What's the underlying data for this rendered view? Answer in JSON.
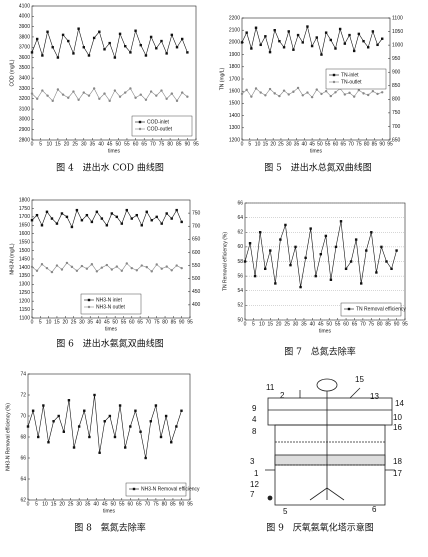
{
  "chart_data": [
    {
      "type": "line",
      "caption": "图 4　进出水 COD 曲线图",
      "xlabel": "times",
      "ylabel": "COD (mg/L)",
      "legend": "lower right",
      "grid": false,
      "x": [
        0,
        3,
        6,
        9,
        12,
        15,
        18,
        21,
        24,
        27,
        30,
        33,
        36,
        39,
        42,
        45,
        48,
        51,
        54,
        57,
        60,
        63,
        66,
        69,
        72,
        75,
        78,
        81,
        84,
        87,
        90
      ],
      "xlim": [
        0,
        95
      ],
      "xticks": [
        0,
        5,
        10,
        15,
        20,
        25,
        30,
        35,
        40,
        45,
        50,
        55,
        60,
        65,
        70,
        75,
        80,
        85,
        90,
        95
      ],
      "ylim": [
        2800,
        4100
      ],
      "yticks": [
        2800,
        2900,
        3000,
        3100,
        3200,
        3300,
        3400,
        3500,
        3600,
        3700,
        3800,
        3900,
        4000,
        4100
      ],
      "series": [
        {
          "name": "COD-inlet",
          "color": "#111111",
          "marker": "square",
          "values": [
            3650,
            3780,
            3620,
            3850,
            3700,
            3600,
            3820,
            3760,
            3640,
            3880,
            3700,
            3620,
            3790,
            3850,
            3680,
            3740,
            3600,
            3830,
            3710,
            3650,
            3860,
            3720,
            3620,
            3800,
            3690,
            3760,
            3640,
            3820,
            3700,
            3780,
            3650
          ]
        },
        {
          "name": "COD-outlet",
          "color": "#888888",
          "marker": "circle",
          "values": [
            3250,
            3200,
            3280,
            3230,
            3180,
            3290,
            3240,
            3210,
            3270,
            3190,
            3260,
            3230,
            3300,
            3200,
            3250,
            3180,
            3280,
            3220,
            3260,
            3300,
            3210,
            3240,
            3190,
            3270,
            3230,
            3280,
            3200,
            3250,
            3180,
            3260,
            3220
          ]
        }
      ]
    },
    {
      "type": "line",
      "caption": "图 5　进出水总氮双曲线图",
      "xlabel": "times",
      "ylabel": "TN (mg/L)",
      "legend": "center right",
      "grid": false,
      "x": [
        0,
        3,
        6,
        9,
        12,
        15,
        18,
        21,
        24,
        27,
        30,
        33,
        36,
        39,
        42,
        45,
        48,
        51,
        54,
        57,
        60,
        63,
        66,
        69,
        72,
        75,
        78,
        81,
        84,
        87,
        90
      ],
      "xlim": [
        0,
        95
      ],
      "xticks": [
        0,
        5,
        10,
        15,
        20,
        25,
        30,
        35,
        40,
        45,
        50,
        55,
        60,
        65,
        70,
        75,
        80,
        85,
        90,
        95
      ],
      "ylim": [
        1200,
        2200
      ],
      "yticks": [
        1200,
        1300,
        1400,
        1500,
        1600,
        1700,
        1800,
        1900,
        2000,
        2100,
        2200
      ],
      "y2lim": [
        650,
        1100
      ],
      "y2ticks": [
        650,
        700,
        750,
        800,
        850,
        900,
        950,
        1000,
        1050,
        1100
      ],
      "series": [
        {
          "name": "TN-inlet",
          "color": "#111111",
          "marker": "square",
          "values": [
            2000,
            2080,
            1950,
            2120,
            1980,
            2050,
            1920,
            2100,
            2010,
            1960,
            2090,
            1940,
            2060,
            2000,
            2130,
            1970,
            2040,
            1900,
            2080,
            2020,
            1950,
            2110,
            1990,
            2060,
            1930,
            2070,
            2010,
            1960,
            2090,
            1980,
            2030
          ]
        },
        {
          "name": "TN-outlet",
          "color": "#888888",
          "marker": "circle",
          "axis": "y2",
          "values": [
            820,
            835,
            810,
            840,
            825,
            815,
            838,
            822,
            812,
            832,
            818,
            828,
            842,
            815,
            825,
            808,
            836,
            820,
            830,
            812,
            826,
            840,
            818,
            824,
            810,
            834,
            822,
            816,
            830,
            820,
            826
          ]
        }
      ]
    },
    {
      "type": "line",
      "caption": "图 6　进出水氨氮双曲线图",
      "xlabel": "times",
      "ylabel": "NH3-N (mg/L)",
      "legend": "lower center",
      "grid": false,
      "x": [
        0,
        3,
        6,
        9,
        12,
        15,
        18,
        21,
        24,
        27,
        30,
        33,
        36,
        39,
        42,
        45,
        48,
        51,
        54,
        57,
        60,
        63,
        66,
        69,
        72,
        75,
        78,
        81,
        84,
        87,
        90
      ],
      "xlim": [
        0,
        95
      ],
      "xticks": [
        0,
        5,
        10,
        15,
        20,
        25,
        30,
        35,
        40,
        45,
        50,
        55,
        60,
        65,
        70,
        75,
        80,
        85,
        90,
        95
      ],
      "ylim": [
        1100,
        1800
      ],
      "yticks": [
        1100,
        1150,
        1200,
        1250,
        1300,
        1350,
        1400,
        1450,
        1500,
        1550,
        1600,
        1650,
        1700,
        1750,
        1800
      ],
      "y2lim": [
        350,
        800
      ],
      "y2ticks": [
        400,
        450,
        500,
        550,
        600,
        650,
        700,
        750
      ],
      "series": [
        {
          "name": "NH3-N inlet",
          "color": "#111111",
          "marker": "square",
          "values": [
            1680,
            1710,
            1650,
            1730,
            1690,
            1660,
            1720,
            1700,
            1640,
            1740,
            1680,
            1710,
            1670,
            1730,
            1690,
            1650,
            1720,
            1700,
            1660,
            1740,
            1690,
            1710,
            1650,
            1730,
            1680,
            1700,
            1660,
            1720,
            1690,
            1740,
            1670
          ]
        },
        {
          "name": "NH3-N outlet",
          "color": "#888888",
          "marker": "circle",
          "axis": "y2",
          "values": [
            545,
            530,
            555,
            540,
            525,
            550,
            535,
            560,
            545,
            530,
            548,
            538,
            555,
            528,
            542,
            552,
            535,
            546,
            530,
            558,
            540,
            532,
            550,
            544,
            528,
            554,
            538,
            546,
            532,
            550,
            540
          ]
        }
      ]
    },
    {
      "type": "line",
      "caption": "图 7　总氮去除率",
      "xlabel": "times",
      "ylabel": "TN Removal efficiency (%)",
      "legend": "lower right",
      "grid": true,
      "x": [
        0,
        3,
        6,
        9,
        12,
        15,
        18,
        21,
        24,
        27,
        30,
        33,
        36,
        39,
        42,
        45,
        48,
        51,
        54,
        57,
        60,
        63,
        66,
        69,
        72,
        75,
        78,
        81,
        84,
        87,
        90
      ],
      "xlim": [
        0,
        95
      ],
      "xticks": [
        0,
        5,
        10,
        15,
        20,
        25,
        30,
        35,
        40,
        45,
        50,
        55,
        60,
        65,
        70,
        75,
        80,
        85,
        90,
        95
      ],
      "ylim": [
        50,
        66
      ],
      "yticks": [
        50,
        52,
        54,
        56,
        58,
        60,
        62,
        64,
        66
      ],
      "series": [
        {
          "name": "TN Removal efficiency",
          "color": "#111111",
          "marker": "square",
          "values": [
            58,
            60.5,
            56,
            62,
            57,
            59.5,
            55,
            61,
            63,
            57.5,
            60,
            54.5,
            58.5,
            62.5,
            56,
            59,
            61.5,
            55.5,
            60,
            63.5,
            57,
            58,
            61,
            55,
            59.5,
            62,
            56.5,
            60,
            58,
            57,
            59.5
          ]
        }
      ]
    },
    {
      "type": "line",
      "caption": "图 8　氨氮去除率",
      "xlabel": "times",
      "ylabel": "NH3-N Removal efficiency (%)",
      "legend": "lower right",
      "grid": false,
      "x": [
        0,
        3,
        6,
        9,
        12,
        15,
        18,
        21,
        24,
        27,
        30,
        33,
        36,
        39,
        42,
        45,
        48,
        51,
        54,
        57,
        60,
        63,
        66,
        69,
        72,
        75,
        78,
        81,
        84,
        87,
        90
      ],
      "xlim": [
        0,
        95
      ],
      "xticks": [
        0,
        5,
        10,
        15,
        20,
        25,
        30,
        35,
        40,
        45,
        50,
        55,
        60,
        65,
        70,
        75,
        80,
        85,
        90,
        95
      ],
      "ylim": [
        62,
        74
      ],
      "yticks": [
        62,
        64,
        66,
        68,
        70,
        72,
        74
      ],
      "series": [
        {
          "name": "NH3-N Removal efficiency",
          "color": "#111111",
          "marker": "square",
          "values": [
            69,
            70.5,
            68,
            71,
            67.5,
            69.5,
            70,
            68.5,
            71.5,
            67,
            69,
            70.5,
            68,
            72,
            66.5,
            69.5,
            70,
            68,
            71,
            67,
            69,
            70.5,
            68.5,
            66,
            69.5,
            71,
            68,
            70,
            67.5,
            69,
            70.5
          ]
        }
      ]
    }
  ],
  "diagram": {
    "caption": "图 9　厌氧氨氧化塔示意图",
    "labels": [
      "11",
      "2",
      "15",
      "13",
      "14",
      "9",
      "4",
      "8",
      "10",
      "16",
      "3",
      "18",
      "1",
      "12",
      "17",
      "7",
      "5",
      "6"
    ]
  }
}
